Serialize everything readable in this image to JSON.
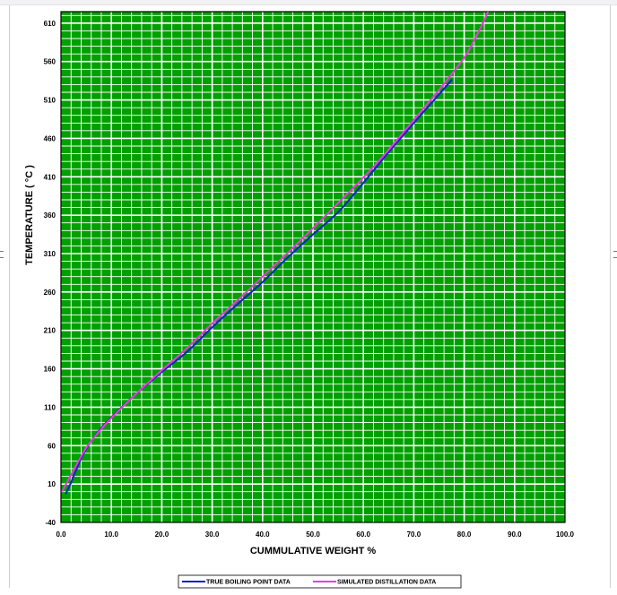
{
  "chart_data": {
    "type": "line",
    "title": "",
    "xlabel": "CUMMULATIVE WEIGHT %",
    "ylabel": "TEMPERATURE ( °C )",
    "xlim": [
      0,
      100
    ],
    "ylim": [
      -40,
      625
    ],
    "x_ticks": [
      "0.0",
      "10.0",
      "20.0",
      "30.0",
      "40.0",
      "50.0",
      "60.0",
      "70.0",
      "80.0",
      "90.0",
      "100.0"
    ],
    "y_ticks": [
      "-40",
      "10",
      "60",
      "110",
      "160",
      "210",
      "260",
      "310",
      "360",
      "410",
      "460",
      "510",
      "560",
      "610"
    ],
    "grid": true,
    "legend_position": "bottom",
    "colors": {
      "plot_background": "#00a000",
      "grid_lines": "#ffffff",
      "plot_border": "#000000"
    },
    "series": [
      {
        "name": "TRUE BOILING POINT DATA",
        "color": "#1c1ccf",
        "points": [
          [
            1.0,
            -2
          ],
          [
            2.0,
            12
          ],
          [
            3.0,
            28
          ],
          [
            4.5,
            50
          ],
          [
            7.0,
            75
          ],
          [
            10.0,
            97
          ],
          [
            14.0,
            122
          ],
          [
            20.0,
            156
          ],
          [
            25.0,
            182
          ],
          [
            30.0,
            214
          ],
          [
            35.0,
            244
          ],
          [
            40.0,
            273
          ],
          [
            45.0,
            305
          ],
          [
            50.0,
            335
          ],
          [
            55.0,
            364
          ],
          [
            60.0,
            402
          ],
          [
            65.0,
            442
          ],
          [
            70.0,
            480
          ],
          [
            75.0,
            517
          ],
          [
            77.5,
            536
          ]
        ]
      },
      {
        "name": "SIMULATED DISTILLATION DATA",
        "color": "#e83ae0",
        "points": [
          [
            0.3,
            1
          ],
          [
            1.5,
            16
          ],
          [
            3.0,
            34
          ],
          [
            5.0,
            57
          ],
          [
            7.5,
            78
          ],
          [
            10.0,
            96
          ],
          [
            15.0,
            128
          ],
          [
            20.0,
            158
          ],
          [
            25.0,
            187
          ],
          [
            30.0,
            219
          ],
          [
            35.0,
            249
          ],
          [
            40.0,
            280
          ],
          [
            45.0,
            311
          ],
          [
            50.0,
            343
          ],
          [
            55.0,
            376
          ],
          [
            60.0,
            409
          ],
          [
            65.0,
            445
          ],
          [
            70.0,
            484
          ],
          [
            75.0,
            523
          ],
          [
            80.0,
            565
          ],
          [
            82.0,
            588
          ],
          [
            84.0,
            614
          ],
          [
            85.0,
            630
          ]
        ]
      }
    ]
  }
}
